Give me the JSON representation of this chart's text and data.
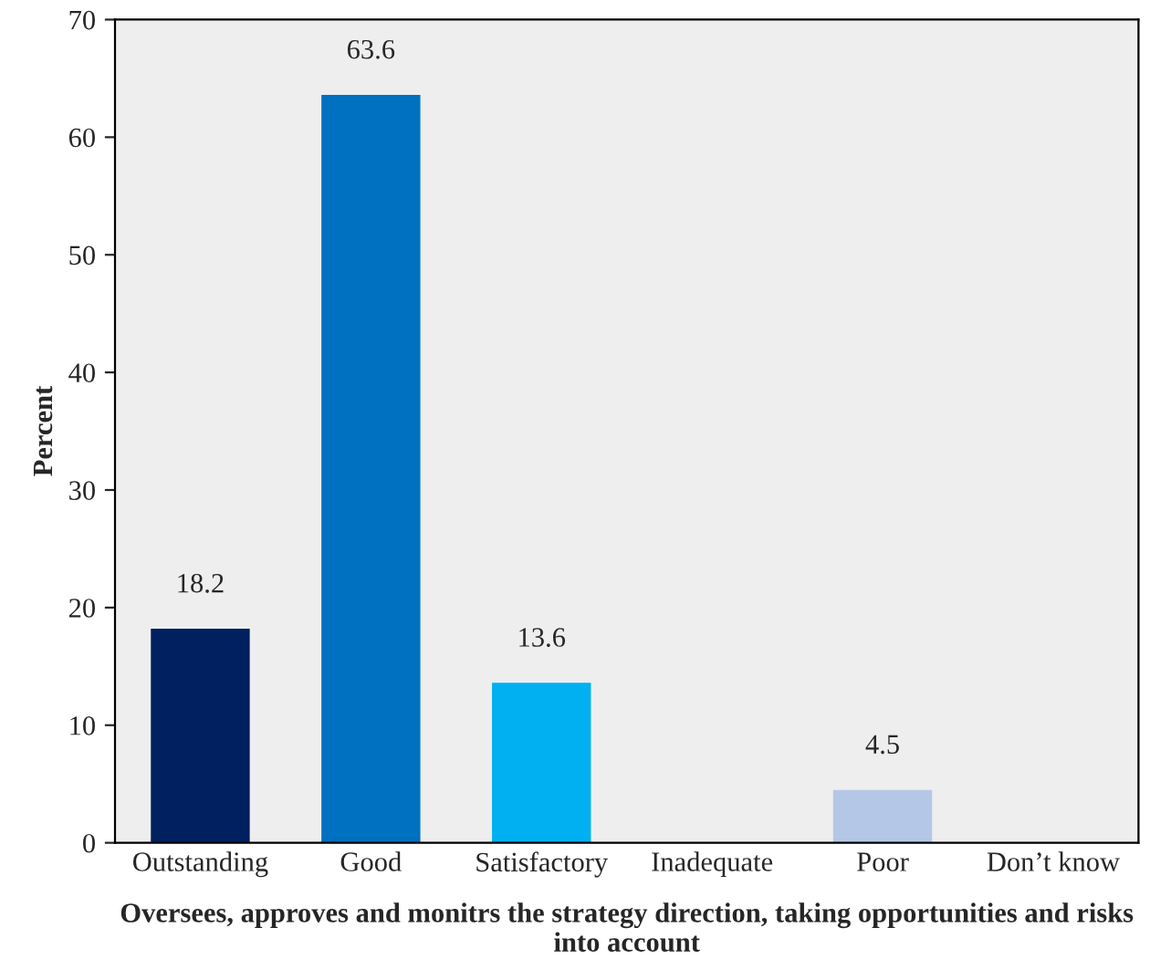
{
  "chart_data": {
    "type": "bar",
    "xlabel": "Oversees, approves and monitrs the strategy direction, taking opportunities and risks into account",
    "ylabel": "Percent",
    "categories": [
      "Outstanding",
      "Good",
      "Satisfactory",
      "Inadequate",
      "Poor",
      "Don’t know"
    ],
    "values": [
      18.2,
      63.6,
      13.6,
      0,
      4.5,
      0
    ],
    "colors": [
      "#002060",
      "#0070c0",
      "#00b0f0",
      "#9dc3e6",
      "#b4c7e7",
      "#9dc3e6"
    ],
    "value_labels": [
      "18.2",
      "63.6",
      "13.6",
      null,
      "4.5",
      null
    ],
    "ylim": [
      0,
      70
    ],
    "yticks": [
      0,
      10,
      20,
      30,
      40,
      50,
      60,
      70
    ],
    "grid": false,
    "legend": false
  }
}
